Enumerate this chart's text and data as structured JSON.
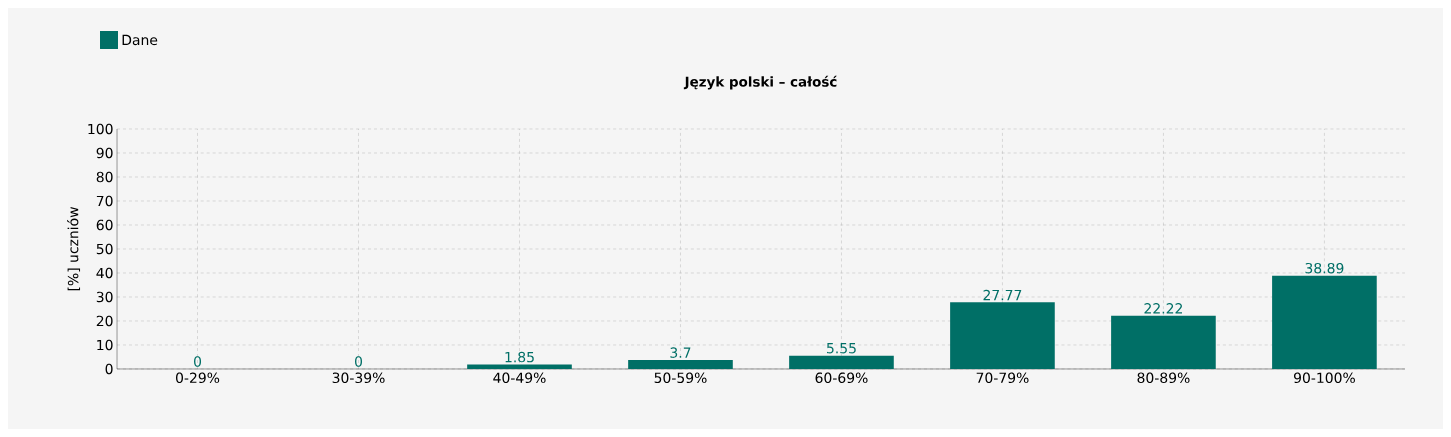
{
  "chart_data": {
    "type": "bar",
    "title": "Język polski – całość",
    "ylabel": "[%] uczniów",
    "categories": [
      "0-29%",
      "30-39%",
      "40-49%",
      "50-59%",
      "60-69%",
      "70-79%",
      "80-89%",
      "90-100%"
    ],
    "series": [
      {
        "name": "Dane",
        "color": "#006f66",
        "values": [
          0,
          0,
          1.85,
          3.7,
          5.55,
          27.77,
          22.22,
          38.89
        ]
      }
    ],
    "ylim": [
      0,
      100
    ],
    "yticks": [
      0,
      10,
      20,
      30,
      40,
      50,
      60,
      70,
      80,
      90,
      100
    ],
    "grid": true,
    "legend": "top left",
    "data_labels": true
  }
}
